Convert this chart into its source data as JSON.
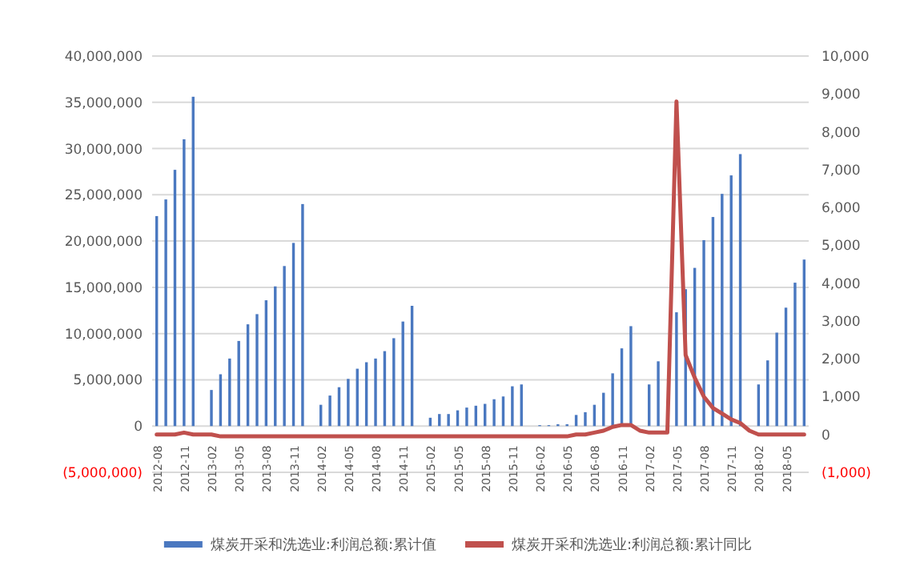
{
  "chart_data": {
    "type": "bar",
    "categories": [
      "2012-08",
      null,
      null,
      "2012-11",
      null,
      null,
      "2013-02",
      null,
      null,
      "2013-05",
      null,
      null,
      "2013-08",
      null,
      null,
      "2013-11",
      null,
      null,
      "2014-02",
      null,
      null,
      "2014-05",
      null,
      null,
      "2014-08",
      null,
      null,
      "2014-11",
      null,
      null,
      "2015-02",
      null,
      null,
      "2015-05",
      null,
      null,
      "2015-08",
      null,
      null,
      "2015-11",
      null,
      null,
      "2016-02",
      null,
      null,
      "2016-05",
      null,
      null,
      "2016-08",
      null,
      null,
      "2016-11",
      null,
      null,
      "2017-02",
      null,
      null,
      "2017-05",
      null,
      null,
      "2017-08",
      null,
      null,
      "2017-11",
      null,
      null,
      "2018-02",
      null,
      null,
      "2018-05",
      null,
      null
    ],
    "series": [
      {
        "name": "煤炭开采和洗选业:利润总额:累计值",
        "color": "#4a78c0",
        "values": [
          22700000,
          24500000,
          27700000,
          31000000,
          35600000,
          null,
          3900000,
          5600000,
          7300000,
          9200000,
          11000000,
          12100000,
          13600000,
          15100000,
          17300000,
          19800000,
          24000000,
          null,
          2300000,
          3300000,
          4200000,
          5100000,
          6200000,
          6900000,
          7300000,
          8100000,
          9500000,
          11300000,
          13000000,
          null,
          900000,
          1300000,
          1300000,
          1700000,
          2000000,
          2200000,
          2400000,
          2900000,
          3200000,
          4300000,
          4500000,
          null,
          100000,
          100000,
          200000,
          200000,
          1200000,
          1500000,
          2300000,
          3600000,
          5700000,
          8400000,
          10800000,
          null,
          4500000,
          7000000,
          null,
          12300000,
          14800000,
          17100000,
          20100000,
          22600000,
          25100000,
          27100000,
          29400000,
          null,
          4500000,
          7100000,
          10100000,
          12800000,
          15500000,
          18000000
        ]
      },
      {
        "name": "煤炭开采和洗选业:利润总额:累计同比",
        "type": "line",
        "axis": "y2",
        "color": "#c0504d",
        "values": [
          0,
          0,
          0,
          50,
          0,
          0,
          0,
          -50,
          -50,
          -50,
          -50,
          -50,
          -50,
          -50,
          -50,
          -50,
          -50,
          -50,
          -50,
          -50,
          -50,
          -50,
          -50,
          -50,
          -50,
          -50,
          -50,
          -50,
          -50,
          -50,
          -50,
          -50,
          -50,
          -50,
          -50,
          -50,
          -50,
          -50,
          -50,
          -50,
          -50,
          -50,
          -50,
          -50,
          -50,
          -50,
          0,
          0,
          50,
          100,
          200,
          250,
          250,
          100,
          50,
          50,
          50,
          8800,
          2100,
          1500,
          1000,
          700,
          550,
          400,
          300,
          100,
          0,
          0,
          0,
          0,
          0,
          0
        ]
      }
    ],
    "ylim": [
      -5000000,
      40000000
    ],
    "yticks": [
      {
        "value": -5000000,
        "label": "(5,000,000)"
      },
      0,
      {
        "value": 5000000,
        "label": "5,000,000"
      },
      {
        "value": 10000000,
        "label": "10,000,000"
      },
      {
        "value": 15000000,
        "label": "15,000,000"
      },
      {
        "value": 20000000,
        "label": "20,000,000"
      },
      {
        "value": 25000000,
        "label": "25,000,000"
      },
      {
        "value": 30000000,
        "label": "30,000,000"
      },
      {
        "value": 35000000,
        "label": "35,000,000"
      },
      {
        "value": 40000000,
        "label": "40,000,000"
      }
    ],
    "y2lim": [
      -1000,
      10000
    ],
    "y2ticks": [
      {
        "value": -1000,
        "label": "(1,000)"
      },
      0,
      {
        "value": 1000,
        "label": "1,000"
      },
      {
        "value": 2000,
        "label": "2,000"
      },
      {
        "value": 3000,
        "label": "3,000"
      },
      {
        "value": 4000,
        "label": "4,000"
      },
      {
        "value": 5000,
        "label": "5,000"
      },
      {
        "value": 6000,
        "label": "6,000"
      },
      {
        "value": 7000,
        "label": "7,000"
      },
      {
        "value": 8000,
        "label": "8,000"
      },
      {
        "value": 9000,
        "label": "9,000"
      },
      {
        "value": 10000,
        "label": "10,000"
      }
    ],
    "grid": "y",
    "legend": "bottom"
  }
}
